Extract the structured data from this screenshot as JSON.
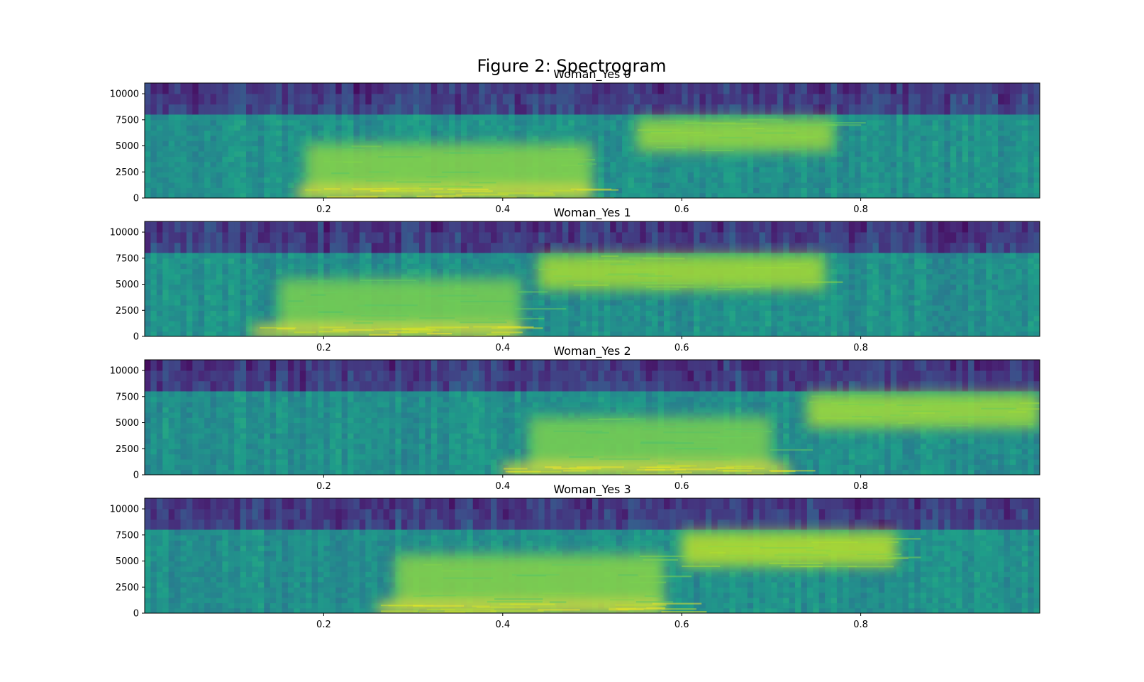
{
  "figure": {
    "title": "Figure 2: Spectrogram"
  },
  "chart_data": [
    {
      "type": "heatmap",
      "title": "Woman_Yes 0",
      "xlabel": "",
      "ylabel": "",
      "xlim": [
        0,
        1.0
      ],
      "ylim": [
        0,
        11025
      ],
      "x_ticks": [
        0.2,
        0.4,
        0.6,
        0.8
      ],
      "x_tick_labels": [
        "0.2",
        "0.4",
        "0.6",
        "0.8"
      ],
      "y_ticks": [
        0,
        2500,
        5000,
        7500,
        10000
      ],
      "y_tick_labels": [
        "0",
        "2500",
        "5000",
        "7500",
        "10000"
      ],
      "colormap": "viridis",
      "energy_regions": [
        {
          "x": [
            0.17,
            0.5
          ],
          "y": [
            0,
            1000
          ],
          "level": 1.0
        },
        {
          "x": [
            0.18,
            0.5
          ],
          "y": [
            1000,
            5200
          ],
          "level": 0.82
        },
        {
          "x": [
            0.55,
            0.77
          ],
          "y": [
            4500,
            7600
          ],
          "level": 0.85
        }
      ]
    },
    {
      "type": "heatmap",
      "title": "Woman_Yes 1",
      "xlabel": "",
      "ylabel": "",
      "xlim": [
        0,
        1.0
      ],
      "ylim": [
        0,
        11025
      ],
      "x_ticks": [
        0.2,
        0.4,
        0.6,
        0.8
      ],
      "x_tick_labels": [
        "0.2",
        "0.4",
        "0.6",
        "0.8"
      ],
      "y_ticks": [
        0,
        2500,
        5000,
        7500,
        10000
      ],
      "y_tick_labels": [
        "0",
        "2500",
        "5000",
        "7500",
        "10000"
      ],
      "colormap": "viridis",
      "energy_regions": [
        {
          "x": [
            0.12,
            0.42
          ],
          "y": [
            0,
            1000
          ],
          "level": 1.0
        },
        {
          "x": [
            0.15,
            0.42
          ],
          "y": [
            1000,
            5500
          ],
          "level": 0.8
        },
        {
          "x": [
            0.44,
            0.76
          ],
          "y": [
            4500,
            7800
          ],
          "level": 0.87
        }
      ]
    },
    {
      "type": "heatmap",
      "title": "Woman_Yes 2",
      "xlabel": "",
      "ylabel": "",
      "xlim": [
        0,
        1.0
      ],
      "ylim": [
        0,
        11025
      ],
      "x_ticks": [
        0.2,
        0.4,
        0.6,
        0.8
      ],
      "x_tick_labels": [
        "0.2",
        "0.4",
        "0.6",
        "0.8"
      ],
      "y_ticks": [
        0,
        2500,
        5000,
        7500,
        10000
      ],
      "y_tick_labels": [
        "0",
        "2500",
        "5000",
        "7500",
        "10000"
      ],
      "colormap": "viridis",
      "energy_regions": [
        {
          "x": [
            0.4,
            0.72
          ],
          "y": [
            0,
            1000
          ],
          "level": 1.0
        },
        {
          "x": [
            0.43,
            0.7
          ],
          "y": [
            1000,
            5500
          ],
          "level": 0.8
        },
        {
          "x": [
            0.74,
            1.0
          ],
          "y": [
            4500,
            7800
          ],
          "level": 0.86
        }
      ]
    },
    {
      "type": "heatmap",
      "title": "Woman_Yes 3",
      "xlabel": "",
      "ylabel": "",
      "xlim": [
        0,
        1.0
      ],
      "ylim": [
        0,
        11025
      ],
      "x_ticks": [
        0.2,
        0.4,
        0.6,
        0.8
      ],
      "x_tick_labels": [
        "0.2",
        "0.4",
        "0.6",
        "0.8"
      ],
      "y_ticks": [
        0,
        2500,
        5000,
        7500,
        10000
      ],
      "y_tick_labels": [
        "0",
        "2500",
        "5000",
        "7500",
        "10000"
      ],
      "colormap": "viridis",
      "energy_regions": [
        {
          "x": [
            0.26,
            0.58
          ],
          "y": [
            0,
            1000
          ],
          "level": 1.0
        },
        {
          "x": [
            0.28,
            0.58
          ],
          "y": [
            1000,
            5600
          ],
          "level": 0.82
        },
        {
          "x": [
            0.6,
            0.84
          ],
          "y": [
            4500,
            7800
          ],
          "level": 0.9
        }
      ]
    }
  ]
}
